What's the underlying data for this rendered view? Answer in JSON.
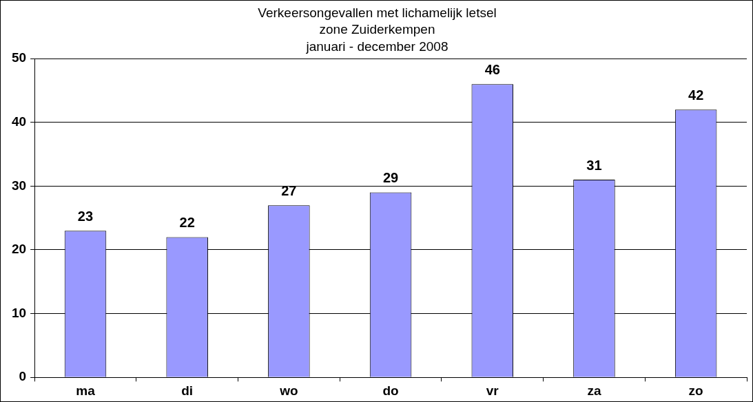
{
  "chart_data": {
    "type": "bar",
    "title": "Verkeersongevallen met lichamelijk letsel\nzone Zuiderkempen\njanuari - december 2008",
    "categories": [
      "ma",
      "di",
      "wo",
      "do",
      "vr",
      "za",
      "zo"
    ],
    "values": [
      23,
      22,
      27,
      29,
      46,
      31,
      42
    ],
    "color": "#9999ff",
    "ylim": [
      0,
      50
    ],
    "yticks": [
      0,
      10,
      20,
      30,
      40,
      50
    ],
    "grid": "y",
    "data_labels": true,
    "legend": false
  }
}
